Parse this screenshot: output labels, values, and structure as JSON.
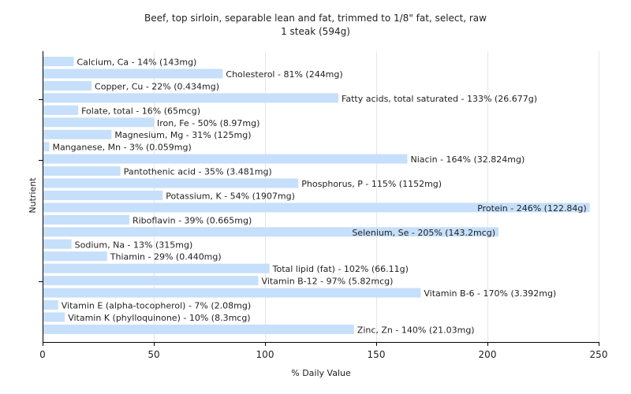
{
  "chart_data": {
    "type": "bar",
    "orientation": "horizontal",
    "title": "Beef, top sirloin, separable lean and fat, trimmed to 1/8\" fat, select, raw",
    "subtitle": "1 steak (594g)",
    "xlabel": "% Daily Value",
    "ylabel": "Nutrient",
    "xlim": [
      0,
      250
    ],
    "xticks": [
      0,
      50,
      100,
      150,
      200,
      250
    ],
    "grid": true,
    "bar_color": "#c6dffb",
    "categories": [
      "Calcium, Ca",
      "Cholesterol",
      "Copper, Cu",
      "Fatty acids, total saturated",
      "Folate, total",
      "Iron, Fe",
      "Magnesium, Mg",
      "Manganese, Mn",
      "Niacin",
      "Pantothenic acid",
      "Phosphorus, P",
      "Potassium, K",
      "Protein",
      "Riboflavin",
      "Selenium, Se",
      "Sodium, Na",
      "Thiamin",
      "Total lipid (fat)",
      "Vitamin B-12",
      "Vitamin B-6",
      "Vitamin E (alpha-tocopherol)",
      "Vitamin K (phylloquinone)",
      "Zinc, Zn"
    ],
    "values": [
      14,
      81,
      22,
      133,
      16,
      50,
      31,
      3,
      164,
      35,
      115,
      54,
      246,
      39,
      205,
      13,
      29,
      102,
      97,
      170,
      7,
      10,
      140
    ],
    "labels": [
      "Calcium, Ca - 14% (143mg)",
      "Cholesterol - 81% (244mg)",
      "Copper, Cu - 22% (0.434mg)",
      "Fatty acids, total saturated - 133% (26.677g)",
      "Folate, total - 16% (65mcg)",
      "Iron, Fe - 50% (8.97mg)",
      "Magnesium, Mg - 31% (125mg)",
      "Manganese, Mn - 3% (0.059mg)",
      "Niacin - 164% (32.824mg)",
      "Pantothenic acid - 35% (3.481mg)",
      "Phosphorus, P - 115% (1152mg)",
      "Potassium, K - 54% (1907mg)",
      "Protein - 246% (122.84g)",
      "Riboflavin - 39% (0.665mg)",
      "Selenium, Se - 205% (143.2mcg)",
      "Sodium, Na - 13% (315mg)",
      "Thiamin - 29% (0.440mg)",
      "Total lipid (fat) - 102% (66.11g)",
      "Vitamin B-12 - 97% (5.82mcg)",
      "Vitamin B-6 - 170% (3.392mg)",
      "Vitamin E (alpha-tocopherol) - 7% (2.08mg)",
      "Vitamin K (phylloquinone) - 10% (8.3mcg)",
      "Zinc, Zn - 140% (21.03mg)"
    ]
  }
}
